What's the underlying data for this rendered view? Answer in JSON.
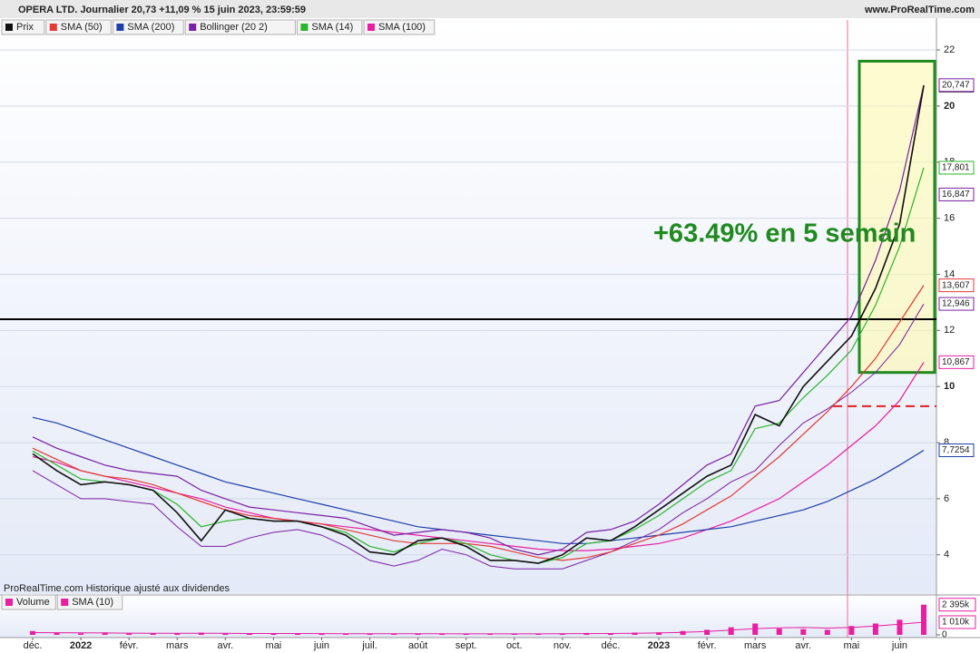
{
  "header": {
    "title": "OPERA LTD. Journalier 20,73 +11,09 % 15 juin 2023, 23:59:59",
    "site": "www.ProRealTime.com"
  },
  "footer_note": "ProRealTime.com Historique ajusté aux dividendes",
  "chart_data": [
    {
      "type": "line",
      "annotation": "+63.49% en 5 semain",
      "categories": [
        "déc.",
        null,
        "2022",
        null,
        "févr.",
        null,
        "mars",
        null,
        "avr.",
        null,
        "mai",
        null,
        "juin",
        null,
        "juil.",
        null,
        "août",
        null,
        "sept.",
        null,
        "oct.",
        null,
        "nov.",
        null,
        "déc.",
        null,
        "2023",
        null,
        "févr.",
        null,
        "mars",
        null,
        "avr.",
        null,
        "mai",
        null,
        "juin",
        null
      ],
      "ylim": [
        2.6,
        23.07
      ],
      "yticks": [
        4,
        6,
        8,
        10,
        12,
        14,
        16,
        18,
        20,
        22
      ],
      "grid": true,
      "hlines": [
        {
          "value": 12.4,
          "color": "#000000",
          "dashed": false
        },
        {
          "value": 9.3,
          "color": "#e02020",
          "dashed": true
        }
      ],
      "box_ylim": [
        10.5,
        21.6
      ],
      "series": [
        {
          "name": "Prix",
          "color": "#111111",
          "values": [
            7.6,
            7.0,
            6.5,
            6.6,
            6.5,
            6.3,
            5.5,
            4.5,
            5.6,
            5.3,
            5.2,
            5.2,
            5.0,
            4.7,
            4.1,
            4.0,
            4.5,
            4.6,
            4.3,
            3.8,
            3.8,
            3.7,
            4.0,
            4.6,
            4.5,
            5.0,
            5.6,
            6.2,
            6.8,
            7.2,
            9.0,
            8.6,
            10.0,
            10.9,
            11.8,
            13.5,
            15.8,
            20.73
          ],
          "end_labels": [
            {
              "value": 20.73,
              "label": "20,73"
            }
          ]
        },
        {
          "name": "SMA (50)",
          "color": "#e53935",
          "values": [
            7.8,
            7.4,
            7.0,
            6.8,
            6.7,
            6.5,
            6.2,
            5.9,
            5.6,
            5.4,
            5.3,
            5.2,
            5.1,
            4.9,
            4.7,
            4.5,
            4.4,
            4.4,
            4.4,
            4.3,
            4.1,
            3.9,
            3.8,
            3.9,
            4.1,
            4.4,
            4.7,
            5.1,
            5.6,
            6.1,
            6.8,
            7.5,
            8.3,
            9.1,
            10.0,
            11.0,
            12.3,
            13.607
          ],
          "end_labels": [
            {
              "value": 13.607,
              "label": "13,607"
            }
          ]
        },
        {
          "name": "SMA (200)",
          "color": "#1e3fa8",
          "values": [
            8.9,
            8.7,
            8.4,
            8.1,
            7.8,
            7.5,
            7.2,
            6.9,
            6.6,
            6.4,
            6.2,
            6.0,
            5.8,
            5.6,
            5.4,
            5.2,
            5.0,
            4.9,
            4.8,
            4.7,
            4.6,
            4.5,
            4.4,
            4.4,
            4.5,
            4.6,
            4.7,
            4.8,
            4.9,
            5.0,
            5.2,
            5.4,
            5.6,
            5.9,
            6.3,
            6.7,
            7.2,
            7.7254
          ],
          "end_labels": [
            {
              "value": 7.7254,
              "label": "7,7254"
            }
          ]
        },
        {
          "name": "Bollinger (20 2)",
          "color": "#7b1fa2",
          "values": [
            8.2,
            7.8,
            7.5,
            7.2,
            7.0,
            6.9,
            6.8,
            6.3,
            6.0,
            5.7,
            5.6,
            5.5,
            5.4,
            5.3,
            5.0,
            4.7,
            4.8,
            4.9,
            4.8,
            4.6,
            4.2,
            4.0,
            4.2,
            4.8,
            4.9,
            5.2,
            5.8,
            6.5,
            7.2,
            7.6,
            9.3,
            9.5,
            10.5,
            11.5,
            12.5,
            14.5,
            17.0,
            20.747
          ],
          "lower": [
            7.0,
            6.5,
            6.0,
            6.0,
            5.9,
            5.8,
            5.0,
            4.3,
            4.3,
            4.6,
            4.8,
            4.9,
            4.7,
            4.3,
            3.8,
            3.6,
            3.8,
            4.2,
            4.0,
            3.6,
            3.5,
            3.5,
            3.5,
            3.8,
            4.1,
            4.5,
            4.9,
            5.5,
            6.0,
            6.6,
            7.0,
            7.9,
            8.7,
            9.2,
            9.8,
            10.5,
            11.5,
            12.946
          ],
          "end_labels": [
            {
              "value": 20.747,
              "label": "20,747"
            },
            {
              "value": 16.847,
              "label": "16,847"
            },
            {
              "value": 12.946,
              "label": "12,946"
            }
          ]
        },
        {
          "name": "SMA (14)",
          "color": "#2bb52b",
          "values": [
            7.7,
            7.2,
            6.7,
            6.6,
            6.5,
            6.3,
            5.8,
            5.0,
            5.2,
            5.3,
            5.2,
            5.2,
            5.0,
            4.8,
            4.3,
            4.1,
            4.4,
            4.6,
            4.4,
            4.0,
            3.8,
            3.7,
            3.9,
            4.4,
            4.5,
            4.9,
            5.4,
            6.0,
            6.6,
            7.0,
            8.5,
            8.7,
            9.6,
            10.4,
            11.3,
            12.9,
            15.0,
            17.801
          ],
          "end_labels": [
            {
              "value": 17.801,
              "label": "17,801"
            }
          ]
        },
        {
          "name": "SMA (100)",
          "color": "#e91ea0",
          "values": [
            7.5,
            7.3,
            7.0,
            6.8,
            6.6,
            6.4,
            6.2,
            6.0,
            5.7,
            5.5,
            5.3,
            5.2,
            5.1,
            5.0,
            4.9,
            4.8,
            4.7,
            4.6,
            4.5,
            4.4,
            4.3,
            4.2,
            4.15,
            4.15,
            4.2,
            4.3,
            4.4,
            4.6,
            4.9,
            5.2,
            5.6,
            6.0,
            6.6,
            7.2,
            7.9,
            8.6,
            9.5,
            10.867
          ],
          "end_labels": [
            {
              "value": 10.867,
              "label": "10,867"
            }
          ]
        }
      ]
    },
    {
      "type": "bar",
      "ylim": [
        0,
        2950000
      ],
      "yticks": [
        0,
        {
          "value": 1010000,
          "label": "1 010k"
        },
        {
          "value": 2395000,
          "label": "2 395k"
        }
      ],
      "series": [
        {
          "name": "Volume",
          "color": "#e91ea0",
          "values": [
            300000,
            150000,
            120000,
            200000,
            100000,
            110000,
            130000,
            180000,
            100000,
            90000,
            110000,
            140000,
            90000,
            80000,
            70000,
            100000,
            90000,
            80000,
            70000,
            90000,
            80000,
            70000,
            100000,
            150000,
            120000,
            180000,
            200000,
            300000,
            400000,
            600000,
            900000,
            500000,
            450000,
            400000,
            700000,
            900000,
            1200000,
            2395000
          ]
        },
        {
          "name": "SMA (10)",
          "color": "#e91ea0",
          "values": [
            180000,
            170000,
            160000,
            150000,
            140000,
            130000,
            130000,
            130000,
            120000,
            110000,
            110000,
            110000,
            100000,
            90000,
            90000,
            90000,
            85000,
            85000,
            80000,
            80000,
            80000,
            80000,
            85000,
            100000,
            110000,
            130000,
            150000,
            200000,
            270000,
            380000,
            500000,
            560000,
            580000,
            540000,
            580000,
            700000,
            850000,
            1010000
          ]
        }
      ]
    }
  ]
}
